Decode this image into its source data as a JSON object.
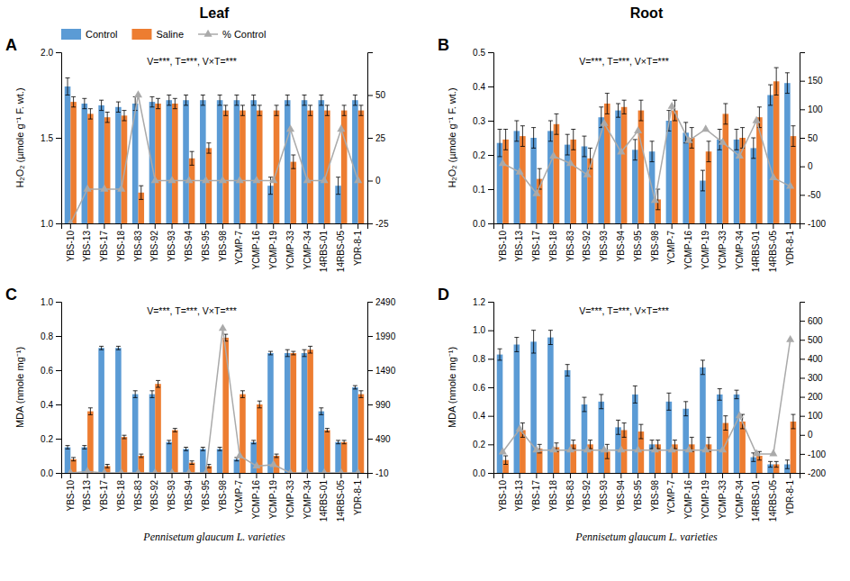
{
  "chart_data": [
    {
      "type": "bar",
      "title": "Leaf",
      "legend": "top",
      "y_label": "H₂O₂ (µmole g⁻¹ F. wt.)",
      "annotations": [
        "A",
        "V=***, T=***, V×T=***"
      ],
      "categories": [
        "YBS-10",
        "YBS-13",
        "YBS-17",
        "YBS-18",
        "YBS-83",
        "YBS-92",
        "YBS-93",
        "YBS-94",
        "YBS-95",
        "YBS-98",
        "YCMP-7",
        "YCMP-16",
        "YCMP-19",
        "YCMP-33",
        "YCMP-34",
        "14RBS-01",
        "14RBS-05",
        "YDR-8-1"
      ],
      "series": [
        {
          "name": "Control",
          "type": "bar",
          "color": "#5B9BD5",
          "values": [
            1.8,
            1.7,
            1.69,
            1.68,
            1.7,
            1.71,
            1.72,
            1.72,
            1.72,
            1.72,
            1.72,
            1.72,
            1.22,
            1.72,
            1.72,
            1.72,
            1.22,
            1.72
          ],
          "errors": [
            0.05,
            0.03,
            0.03,
            0.03,
            0.04,
            0.03,
            0.03,
            0.03,
            0.03,
            0.03,
            0.03,
            0.03,
            0.05,
            0.03,
            0.03,
            0.03,
            0.05,
            0.03
          ]
        },
        {
          "name": "Saline",
          "type": "bar",
          "color": "#ED7D31",
          "values": [
            1.71,
            1.64,
            1.62,
            1.63,
            1.18,
            1.7,
            1.7,
            1.38,
            1.44,
            1.66,
            1.66,
            1.66,
            1.66,
            1.36,
            1.66,
            1.66,
            1.66,
            1.66
          ],
          "errors": [
            0.03,
            0.03,
            0.03,
            0.03,
            0.04,
            0.03,
            0.03,
            0.04,
            0.03,
            0.03,
            0.03,
            0.03,
            0.03,
            0.04,
            0.03,
            0.03,
            0.03,
            0.03
          ]
        },
        {
          "name": "% Control",
          "type": "line",
          "axis": "y2",
          "color": "#AAAAAA",
          "marker": "triangle",
          "values": [
            -25,
            -5,
            -5,
            -5,
            50,
            0,
            0,
            0,
            0,
            0,
            0,
            0,
            0,
            30,
            0,
            0,
            30,
            0
          ]
        }
      ],
      "ylim": [
        1.0,
        2.0
      ],
      "yticks": [
        {
          "value": 1.0,
          "label": "1.0"
        },
        1.5,
        {
          "value": 2.0,
          "label": "2.0"
        }
      ],
      "y2lim": [
        -25,
        75
      ],
      "y2ticks": [
        -25,
        0,
        25,
        50
      ]
    },
    {
      "type": "bar",
      "title": "Root",
      "y_label": "H₂O₂ (µmole g⁻¹ F. wt.)",
      "annotations": [
        "B",
        "V=***, T=***, V×T=***"
      ],
      "categories": [
        "YBS-10",
        "YBS-13",
        "YBS-17",
        "YBS-18",
        "YBS-83",
        "YBS-92",
        "YBS-93",
        "YBS-94",
        "YBS-95",
        "YBS-98",
        "YCMP-7",
        "YCMP-16",
        "YCMP-19",
        "YCMP-33",
        "YCMP-34",
        "14RBS-01",
        "14RBS-05",
        "YDR-8-1"
      ],
      "series": [
        {
          "name": "Control",
          "type": "bar",
          "color": "#5B9BD5",
          "values": [
            0.235,
            0.27,
            0.25,
            0.27,
            0.23,
            0.225,
            0.31,
            0.33,
            0.215,
            0.21,
            0.3,
            0.265,
            0.125,
            0.245,
            0.245,
            0.22,
            0.375,
            0.41
          ],
          "errors": [
            0.04,
            0.03,
            0.03,
            0.03,
            0.03,
            0.03,
            0.03,
            0.02,
            0.03,
            0.03,
            0.03,
            0.03,
            0.03,
            0.03,
            0.03,
            0.03,
            0.03,
            0.03
          ]
        },
        {
          "name": "Saline",
          "type": "bar",
          "color": "#ED7D31",
          "values": [
            0.245,
            0.255,
            0.13,
            0.29,
            0.245,
            0.19,
            0.35,
            0.34,
            0.33,
            0.07,
            0.33,
            0.25,
            0.21,
            0.32,
            0.25,
            0.31,
            0.415,
            0.255
          ],
          "errors": [
            0.03,
            0.03,
            0.03,
            0.03,
            0.03,
            0.03,
            0.03,
            0.02,
            0.03,
            0.03,
            0.03,
            0.03,
            0.03,
            0.03,
            0.03,
            0.03,
            0.04,
            0.03
          ]
        },
        {
          "name": "% Control",
          "type": "line",
          "axis": "y2",
          "color": "#AAAAAA",
          "marker": "triangle",
          "values": [
            5,
            -10,
            -48,
            18,
            5,
            -15,
            75,
            25,
            62,
            -60,
            105,
            45,
            65,
            42,
            18,
            80,
            -20,
            -35
          ]
        }
      ],
      "ylim": [
        0.0,
        0.5
      ],
      "yticks": [
        {
          "value": 0.0,
          "label": "0.0"
        },
        0.1,
        0.2,
        0.3,
        0.4,
        0.5
      ],
      "y2lim": [
        -100,
        200
      ],
      "y2ticks": [
        -100,
        -50,
        0,
        50,
        100,
        150
      ]
    },
    {
      "type": "bar",
      "x_label": "Pennisetum glaucum L. varieties",
      "y_label": "MDA (nmole mg⁻¹)",
      "annotations": [
        "C",
        "V=***, T=***, V×T=***"
      ],
      "categories": [
        "YBS-10",
        "YBS-13",
        "YBS-17",
        "YBS-18",
        "YBS-83",
        "YBS-92",
        "YBS-93",
        "YBS-94",
        "YBS-95",
        "YBS-98",
        "YCMP-7",
        "YCMP-16",
        "YCMP-19",
        "YCMP-33",
        "YCMP-34",
        "14RBS-01",
        "14RBS-05",
        "YDR-8-1"
      ],
      "series": [
        {
          "name": "Control",
          "type": "bar",
          "color": "#5B9BD5",
          "values": [
            0.15,
            0.15,
            0.73,
            0.73,
            0.46,
            0.46,
            0.18,
            0.14,
            0.14,
            0.14,
            0.08,
            0.18,
            0.7,
            0.7,
            0.7,
            0.36,
            0.18,
            0.5
          ],
          "errors": [
            0.01,
            0.01,
            0.01,
            0.01,
            0.02,
            0.02,
            0.01,
            0.01,
            0.01,
            0.01,
            0.01,
            0.01,
            0.01,
            0.02,
            0.02,
            0.02,
            0.01,
            0.01
          ]
        },
        {
          "name": "Saline",
          "type": "bar",
          "color": "#ED7D31",
          "values": [
            0.08,
            0.36,
            0.04,
            0.21,
            0.1,
            0.52,
            0.25,
            0.06,
            0.04,
            0.79,
            0.46,
            0.4,
            0.1,
            0.7,
            0.72,
            0.25,
            0.18,
            0.46
          ],
          "errors": [
            0.01,
            0.02,
            0.01,
            0.01,
            0.01,
            0.02,
            0.01,
            0.01,
            0.01,
            0.02,
            0.02,
            0.02,
            0.01,
            0.01,
            0.02,
            0.01,
            0.01,
            0.02
          ]
        },
        {
          "name": "% Control",
          "type": "line",
          "axis": "y2",
          "color": "#AAAAAA",
          "marker": "triangle",
          "values": [
            -10,
            10,
            -10,
            -10,
            -10,
            -10,
            -10,
            -10,
            -10,
            2100,
            240,
            90,
            110,
            -10,
            -10,
            -10,
            -10,
            -10
          ]
        }
      ],
      "ylim": [
        0.0,
        1.0
      ],
      "yticks": [
        {
          "value": 0.0,
          "label": "0.0"
        },
        0.2,
        0.4,
        0.6,
        0.8,
        {
          "value": 1.0,
          "label": "1.0"
        }
      ],
      "y2lim": [
        -10,
        2490
      ],
      "y2ticks": [
        -10,
        490,
        990,
        1490,
        1990,
        2490
      ]
    },
    {
      "type": "bar",
      "x_label": "Pennisetum glaucum L. varieties",
      "y_label": "MDA (nmole mg⁻¹)",
      "annotations": [
        "D",
        "V=***, T=***, V×T=***"
      ],
      "categories": [
        "YBS-10",
        "YBS-13",
        "YBS-17",
        "YBS-18",
        "YBS-83",
        "YBS-92",
        "YBS-93",
        "YBS-94",
        "YBS-95",
        "YBS-98",
        "YCMP-7",
        "YCMP-16",
        "YCMP-19",
        "YCMP-33",
        "YCMP-34",
        "14RBS-01",
        "14RBS-05",
        "YDR-8-1"
      ],
      "series": [
        {
          "name": "Control",
          "type": "bar",
          "color": "#5B9BD5",
          "values": [
            0.83,
            0.9,
            0.92,
            0.95,
            0.72,
            0.48,
            0.5,
            0.32,
            0.55,
            0.2,
            0.5,
            0.45,
            0.74,
            0.55,
            0.55,
            0.11,
            0.06,
            0.06
          ],
          "errors": [
            0.04,
            0.05,
            0.08,
            0.05,
            0.04,
            0.05,
            0.05,
            0.05,
            0.06,
            0.03,
            0.06,
            0.05,
            0.05,
            0.04,
            0.03,
            0.03,
            0.02,
            0.03
          ]
        },
        {
          "name": "Saline",
          "type": "bar",
          "color": "#ED7D31",
          "values": [
            0.09,
            0.3,
            0.17,
            0.18,
            0.2,
            0.2,
            0.15,
            0.3,
            0.29,
            0.2,
            0.2,
            0.2,
            0.2,
            0.35,
            0.36,
            0.12,
            0.06,
            0.36
          ],
          "errors": [
            0.03,
            0.05,
            0.03,
            0.03,
            0.03,
            0.03,
            0.05,
            0.05,
            0.05,
            0.03,
            0.03,
            0.05,
            0.05,
            0.05,
            0.05,
            0.03,
            0.02,
            0.05
          ]
        },
        {
          "name": "% Control",
          "type": "line",
          "axis": "y2",
          "color": "#AAAAAA",
          "marker": "triangle",
          "values": [
            -90,
            30,
            -80,
            -80,
            -80,
            -80,
            -80,
            -80,
            -80,
            -80,
            -80,
            -80,
            -80,
            -80,
            100,
            -100,
            -100,
            500
          ]
        }
      ],
      "ylim": [
        0.0,
        1.2
      ],
      "yticks": [
        {
          "value": 0.0,
          "label": "0.0"
        },
        0.2,
        0.4,
        0.6,
        0.8,
        {
          "value": 1.0,
          "label": "1.0"
        },
        1.2
      ],
      "y2lim": [
        -200,
        700
      ],
      "y2ticks": [
        -200,
        -100,
        0,
        100,
        200,
        300,
        400,
        500,
        600
      ]
    }
  ]
}
